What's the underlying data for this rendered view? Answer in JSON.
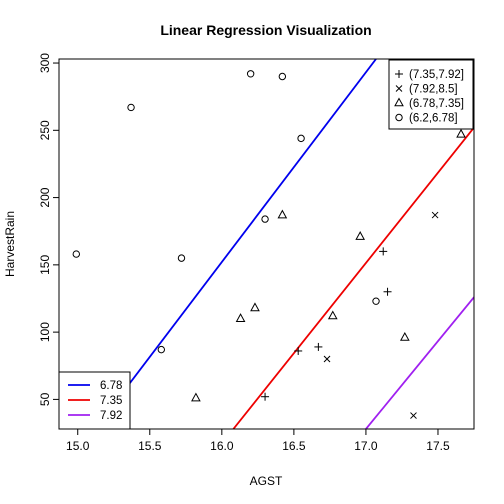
{
  "chart_data": {
    "type": "scatter",
    "title": "Linear Regression Visualization",
    "xlabel": "AGST",
    "ylabel": "HarvestRain",
    "xlim": [
      14.87,
      17.75
    ],
    "ylim": [
      28,
      303
    ],
    "x_ticks": [
      "15.0",
      "15.5",
      "16.0",
      "16.5",
      "17.0",
      "17.5"
    ],
    "x_tick_values": [
      15.0,
      15.5,
      16.0,
      16.5,
      17.0,
      17.5
    ],
    "y_ticks": [
      "50",
      "100",
      "150",
      "200",
      "250",
      "300"
    ],
    "y_tick_values": [
      50,
      100,
      150,
      200,
      250,
      300
    ],
    "grid": false,
    "series": [
      {
        "name": "(7.35,7.92]",
        "marker": "plus",
        "points": [
          [
            16.3,
            52
          ],
          [
            16.53,
            86
          ],
          [
            16.67,
            89
          ],
          [
            17.12,
            160
          ],
          [
            17.15,
            130
          ]
        ]
      },
      {
        "name": "(7.92,8.5]",
        "marker": "cross",
        "points": [
          [
            16.73,
            80
          ],
          [
            17.48,
            187
          ],
          [
            17.33,
            38
          ]
        ]
      },
      {
        "name": "(6.78,7.35]",
        "marker": "triangle",
        "points": [
          [
            15.82,
            51
          ],
          [
            16.13,
            110
          ],
          [
            16.23,
            118
          ],
          [
            16.42,
            187
          ],
          [
            16.77,
            112
          ],
          [
            16.96,
            171
          ],
          [
            17.27,
            96
          ],
          [
            17.66,
            247
          ]
        ]
      },
      {
        "name": "(6.2,6.78]",
        "marker": "circle",
        "points": [
          [
            14.99,
            158
          ],
          [
            15.37,
            267
          ],
          [
            15.58,
            87
          ],
          [
            15.72,
            155
          ],
          [
            16.2,
            292
          ],
          [
            16.3,
            184
          ],
          [
            16.42,
            290
          ],
          [
            16.55,
            244
          ],
          [
            17.07,
            123
          ]
        ]
      }
    ],
    "lines": [
      {
        "name": "6.78",
        "color": "#0000ee",
        "points": [
          [
            15.12,
            28
          ],
          [
            17.07,
            303
          ]
        ]
      },
      {
        "name": "7.35",
        "color": "#ee0000",
        "points": [
          [
            16.08,
            28
          ],
          [
            17.75,
            252
          ]
        ]
      },
      {
        "name": "7.92",
        "color": "#a020f0",
        "points": [
          [
            17.0,
            28
          ],
          [
            17.75,
            126
          ]
        ]
      }
    ],
    "legend_points": {
      "placement": "top-right",
      "labels": [
        "(7.35,7.92]",
        "(7.92,8.5]",
        "(6.78,7.35]",
        "(6.2,6.78]"
      ]
    },
    "legend_lines": {
      "placement": "bottom-left",
      "labels": [
        "6.78",
        "7.35",
        "7.92"
      ]
    }
  }
}
